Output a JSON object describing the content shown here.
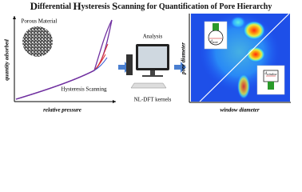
{
  "header": {
    "title_parts": [
      "D",
      "ifferential ",
      "H",
      "ysteresis ",
      "S",
      "canning for Quantification of Pore Hierarchy"
    ]
  },
  "left_panel": {
    "inset_label": "Porous Material",
    "curve_label": "Hysteresis Scanning",
    "y_axis_label": "quantity adsorbed",
    "x_axis_label": "relative pressure"
  },
  "middle": {
    "top_label": "Analysis",
    "bottom_label": "NL-DFT kernels"
  },
  "right_panel": {
    "y_axis_label": "pore diameter",
    "x_axis_label": "window diameter",
    "inset_pore": {
      "d": "d",
      "sub": "pore"
    },
    "inset_window": {
      "d": "d",
      "sub": "window"
    }
  }
}
